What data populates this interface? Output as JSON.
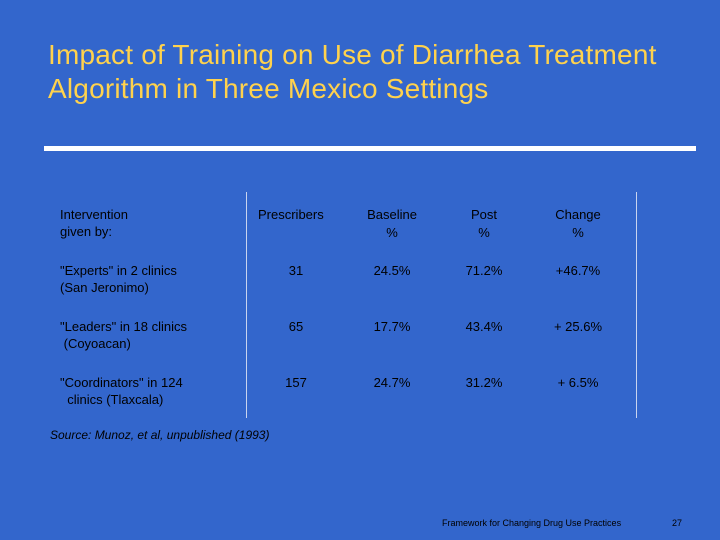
{
  "slide": {
    "title": "Impact of Training on Use of Diarrhea Treatment Algorithm in Three Mexico Settings",
    "source": "Source: Munoz, et al, unpublished (1993)",
    "footer": "Framework for Changing Drug Use Practices",
    "page_number": "27"
  },
  "table": {
    "headers": {
      "intervention": "Intervention\ngiven by:",
      "prescribers": "Prescribers",
      "baseline": "Baseline",
      "baseline_unit": "%",
      "post": "Post",
      "post_unit": "%",
      "change": "Change",
      "change_unit": "%"
    },
    "rows": [
      {
        "intervention": "\"Experts\" in 2 clinics\n(San Jeronimo)",
        "prescribers": "31",
        "baseline": "24.5%",
        "post": "71.2%",
        "change": "+46.7%"
      },
      {
        "intervention": "\"Leaders\" in 18 clinics\n (Coyoacan)",
        "prescribers": "65",
        "baseline": "17.7%",
        "post": "43.4%",
        "change": "+ 25.6%"
      },
      {
        "intervention": "\"Coordinators\" in 124\n  clinics (Tlaxcala)",
        "prescribers": "157",
        "baseline": "24.7%",
        "post": "31.2%",
        "change": "+ 6.5%"
      }
    ]
  },
  "colors": {
    "background": "#3366cc",
    "title": "#ffd24d",
    "rule": "#ffffff"
  }
}
